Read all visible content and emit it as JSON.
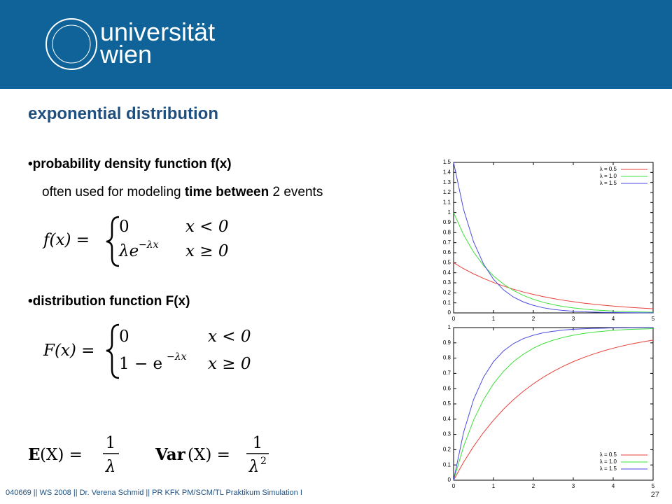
{
  "header": {
    "logo_line1": "universität",
    "logo_line2": "wien"
  },
  "title": "exponential distribution",
  "bullet1": "•probability density function f(x)",
  "sentence": [
    "often used for modeling ",
    "time between",
    " 2 events"
  ],
  "pdf_formula": {
    "lhs": "f(x) =",
    "case1_value": "0",
    "case1_condition": "x < 0",
    "case2_value": "λe",
    "case2_exponent": "−λx",
    "case2_condition": "x ≥ 0"
  },
  "bullet2": "•distribution function F(x)",
  "cdf_formula": {
    "lhs": "F(x) =",
    "case1_value": "0",
    "case1_condition": "x < 0",
    "case2_value": "1 − e",
    "case2_exponent": "−λx",
    "case2_condition": "x ≥ 0"
  },
  "expectation": {
    "symbol": "E",
    "lhs": "(X) =",
    "numerator": "1",
    "denominator": "λ"
  },
  "variance": {
    "symbol": "Var",
    "lhs": "(X) =",
    "numerator": "1",
    "denominator": "λ",
    "exponent": "2"
  },
  "footer": "040669 || WS 2008 || Dr. Verena Schmid || PR KFK PM/SCM/TL Praktikum Simulation I",
  "page_number": "27",
  "chart_data": [
    {
      "type": "line",
      "legend": "upper right",
      "grid": false,
      "x": [
        0,
        0.25,
        0.5,
        0.75,
        1,
        1.25,
        1.5,
        1.75,
        2,
        2.25,
        2.5,
        2.75,
        3,
        3.25,
        3.5,
        3.75,
        4,
        4.25,
        4.5,
        4.75,
        5
      ],
      "xlim": [
        0,
        5
      ],
      "xticks": [
        0,
        1,
        2,
        3,
        4,
        5
      ],
      "ylim": [
        0,
        1.5
      ],
      "yticks": [
        0,
        0.1,
        0.2,
        0.3,
        0.4,
        0.5,
        0.6,
        0.7,
        0.8,
        0.9,
        1,
        1.1,
        1.2,
        1.3,
        1.4,
        1.5
      ],
      "series": [
        {
          "name": "λ = 0.5",
          "color": "#e8403a",
          "values": [
            0.5,
            0.441,
            0.389,
            0.344,
            0.303,
            0.268,
            0.236,
            0.208,
            0.184,
            0.162,
            0.143,
            0.126,
            0.112,
            0.098,
            0.087,
            0.077,
            0.068,
            0.06,
            0.053,
            0.047,
            0.041
          ]
        },
        {
          "name": "λ = 1.0",
          "color": "#3ee03a",
          "values": [
            1,
            0.779,
            0.607,
            0.472,
            0.368,
            0.287,
            0.223,
            0.174,
            0.135,
            0.105,
            0.082,
            0.064,
            0.05,
            0.039,
            0.03,
            0.024,
            0.018,
            0.014,
            0.011,
            0.009,
            0.007
          ]
        },
        {
          "name": "λ = 1.5",
          "color": "#4a4ae0",
          "values": [
            1.5,
            1.031,
            0.709,
            0.487,
            0.335,
            0.23,
            0.158,
            0.109,
            0.075,
            0.051,
            0.035,
            0.024,
            0.017,
            0.011,
            0.008,
            0.005,
            0.004,
            0.003,
            0.002,
            0.001,
            0.001
          ]
        }
      ]
    },
    {
      "type": "line",
      "legend": "lower right",
      "grid": false,
      "x": [
        0,
        0.25,
        0.5,
        0.75,
        1,
        1.25,
        1.5,
        1.75,
        2,
        2.25,
        2.5,
        2.75,
        3,
        3.25,
        3.5,
        3.75,
        4,
        4.25,
        4.5,
        4.75,
        5
      ],
      "xlim": [
        0,
        5
      ],
      "xticks": [
        0,
        1,
        2,
        3,
        4,
        5
      ],
      "ylim": [
        0,
        1
      ],
      "yticks": [
        0,
        0.1,
        0.2,
        0.3,
        0.4,
        0.5,
        0.6,
        0.7,
        0.8,
        0.9,
        1
      ],
      "series": [
        {
          "name": "λ = 0.5",
          "color": "#e8403a",
          "values": [
            0,
            0.118,
            0.221,
            0.313,
            0.393,
            0.465,
            0.528,
            0.583,
            0.632,
            0.675,
            0.713,
            0.747,
            0.777,
            0.803,
            0.826,
            0.847,
            0.865,
            0.881,
            0.895,
            0.907,
            0.918
          ]
        },
        {
          "name": "λ = 1.0",
          "color": "#3ee03a",
          "values": [
            0,
            0.221,
            0.393,
            0.528,
            0.632,
            0.713,
            0.777,
            0.826,
            0.865,
            0.895,
            0.918,
            0.936,
            0.95,
            0.961,
            0.97,
            0.976,
            0.982,
            0.986,
            0.989,
            0.991,
            0.993
          ]
        },
        {
          "name": "λ = 1.5",
          "color": "#4a4ae0",
          "values": [
            0,
            0.313,
            0.528,
            0.675,
            0.777,
            0.847,
            0.895,
            0.928,
            0.95,
            0.966,
            0.976,
            0.984,
            0.989,
            0.992,
            0.995,
            0.996,
            0.998,
            0.998,
            0.999,
            0.999,
            0.999
          ]
        }
      ]
    }
  ]
}
